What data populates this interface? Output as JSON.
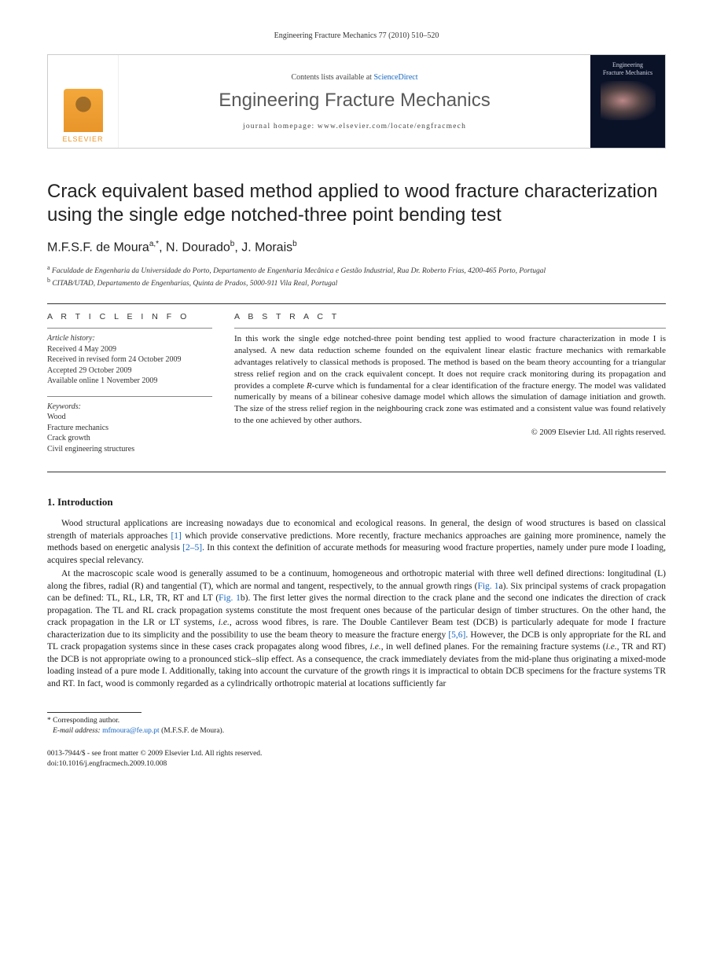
{
  "header": {
    "citation": "Engineering Fracture Mechanics 77 (2010) 510–520"
  },
  "banner": {
    "publisher": "ELSEVIER",
    "contents_prefix": "Contents lists available at ",
    "contents_link": "ScienceDirect",
    "journal_name": "Engineering Fracture Mechanics",
    "homepage_label": "journal homepage: www.elsevier.com/locate/engfracmech",
    "cover_line1": "Engineering",
    "cover_line2": "Fracture Mechanics"
  },
  "title": "Crack equivalent based method applied to wood fracture characterization using the single edge notched-three point bending test",
  "authors": {
    "a1_name": "M.F.S.F. de Moura",
    "a1_sup": "a,*",
    "a2_name": "N. Dourado",
    "a2_sup": "b",
    "a3_name": "J. Morais",
    "a3_sup": "b"
  },
  "affiliations": {
    "a": "Faculdade de Engenharia da Universidade do Porto, Departamento de Engenharia Mecânica e Gestão Industrial, Rua Dr. Roberto Frias, 4200-465 Porto, Portugal",
    "b": "CITAB/UTAD, Departamento de Engenharias, Quinta de Prados, 5000-911 Vila Real, Portugal"
  },
  "info": {
    "label": "A R T I C L E   I N F O",
    "history_heading": "Article history:",
    "received": "Received 4 May 2009",
    "revised": "Received in revised form 24 October 2009",
    "accepted": "Accepted 29 October 2009",
    "online": "Available online 1 November 2009",
    "keywords_heading": "Keywords:",
    "kw1": "Wood",
    "kw2": "Fracture mechanics",
    "kw3": "Crack growth",
    "kw4": "Civil engineering structures"
  },
  "abstract": {
    "label": "A B S T R A C T",
    "text_part1": "In this work the single edge notched-three point bending test applied to wood fracture characterization in mode I is analysed. A new data reduction scheme founded on the equivalent linear elastic fracture mechanics with remarkable advantages relatively to classical methods is proposed. The method is based on the beam theory accounting for a triangular stress relief region and on the crack equivalent concept. It does not require crack monitoring during its propagation and provides a complete ",
    "italic1": "R",
    "text_part2": "-curve which is fundamental for a clear identification of the fracture energy. The model was validated numerically by means of a bilinear cohesive damage model which allows the simulation of damage initiation and growth. The size of the stress relief region in the neighbouring crack zone was estimated and a consistent value was found relatively to the one achieved by other authors.",
    "copyright": "© 2009 Elsevier Ltd. All rights reserved."
  },
  "section1": {
    "heading": "1. Introduction",
    "p1_a": "Wood structural applications are increasing nowadays due to economical and ecological reasons. In general, the design of wood structures is based on classical strength of materials approaches ",
    "p1_ref1": "[1]",
    "p1_b": " which provide conservative predictions. More recently, fracture mechanics approaches are gaining more prominence, namely the methods based on energetic analysis ",
    "p1_ref2": "[2–5]",
    "p1_c": ". In this context the definition of accurate methods for measuring wood fracture properties, namely under pure mode I loading, acquires special relevancy.",
    "p2_a": "At the macroscopic scale wood is generally assumed to be a continuum, homogeneous and orthotropic material with three well defined directions: longitudinal (L) along the fibres, radial (R) and tangential (T), which are normal and tangent, respectively, to the annual growth rings (",
    "p2_fig1": "Fig. 1",
    "p2_b": "a). Six principal systems of crack propagation can be defined: TL, RL, LR, TR, RT and LT (",
    "p2_fig2": "Fig. 1",
    "p2_c": "b). The first letter gives the normal direction to the crack plane and the second one indicates the direction of crack propagation. The TL and RL crack propagation systems constitute the most frequent ones because of the particular design of timber structures. On the other hand, the crack propagation in the LR or LT systems, ",
    "p2_ie1": "i.e.",
    "p2_d": ", across wood fibres, is rare. The Double Cantilever Beam test (DCB) is particularly adequate for mode I fracture characterization due to its simplicity and the possibility to use the beam theory to measure the fracture energy ",
    "p2_ref1": "[5,6]",
    "p2_e": ". However, the DCB is only appropriate for the RL and TL crack propagation systems since in these cases crack propagates along wood fibres, ",
    "p2_ie2": "i.e.",
    "p2_f": ", in well defined planes. For the remaining fracture systems (",
    "p2_ie3": "i.e.",
    "p2_g": ", TR and RT) the DCB is not appropriate owing to a pronounced stick–slip effect. As a consequence, the crack immediately deviates from the mid-plane thus originating a mixed-mode loading instead of a pure mode I. Additionally, taking into account the curvature of the growth rings it is impractical to obtain DCB specimens for the fracture systems TR and RT. In fact, wood is commonly regarded as a cylindrically orthotropic material at locations sufficiently far"
  },
  "footnotes": {
    "corr": "* Corresponding author.",
    "email_label": "E-mail address:",
    "email": "mfmoura@fe.up.pt",
    "email_person": "(M.F.S.F. de Moura)."
  },
  "bottom": {
    "issn_line": "0013-7944/$ - see front matter © 2009 Elsevier Ltd. All rights reserved.",
    "doi_line": "doi:10.1016/j.engfracmech.2009.10.008"
  }
}
